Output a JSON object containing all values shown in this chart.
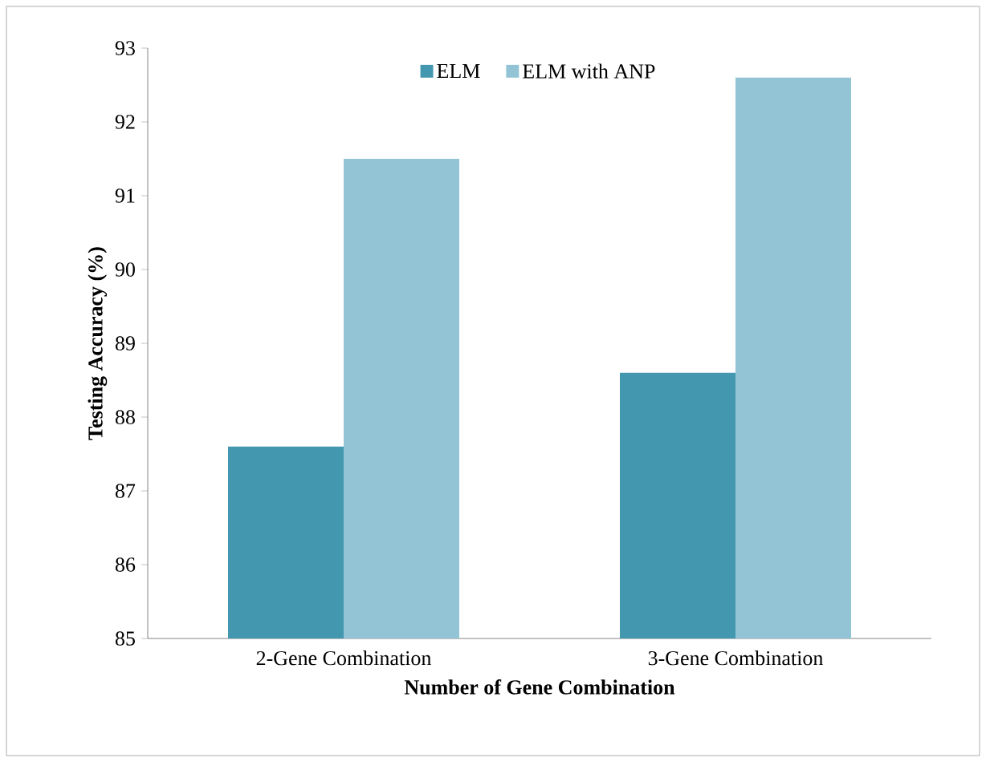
{
  "chart_data": {
    "type": "bar",
    "xlabel": "Number of Gene Combination",
    "ylabel": "Testing Accuracy (%)",
    "categories": [
      "2-Gene Combination",
      "3-Gene Combination"
    ],
    "series": [
      {
        "name": "ELM",
        "color": "#4398b0",
        "values": [
          87.6,
          88.6
        ]
      },
      {
        "name": "ELM with ANP",
        "color": "#93c4d6",
        "values": [
          91.5,
          92.6
        ]
      }
    ],
    "ylim": [
      85,
      93
    ],
    "yticks": [
      85,
      86,
      87,
      88,
      89,
      90,
      91,
      92,
      93
    ],
    "grid": false,
    "legend": "top"
  }
}
